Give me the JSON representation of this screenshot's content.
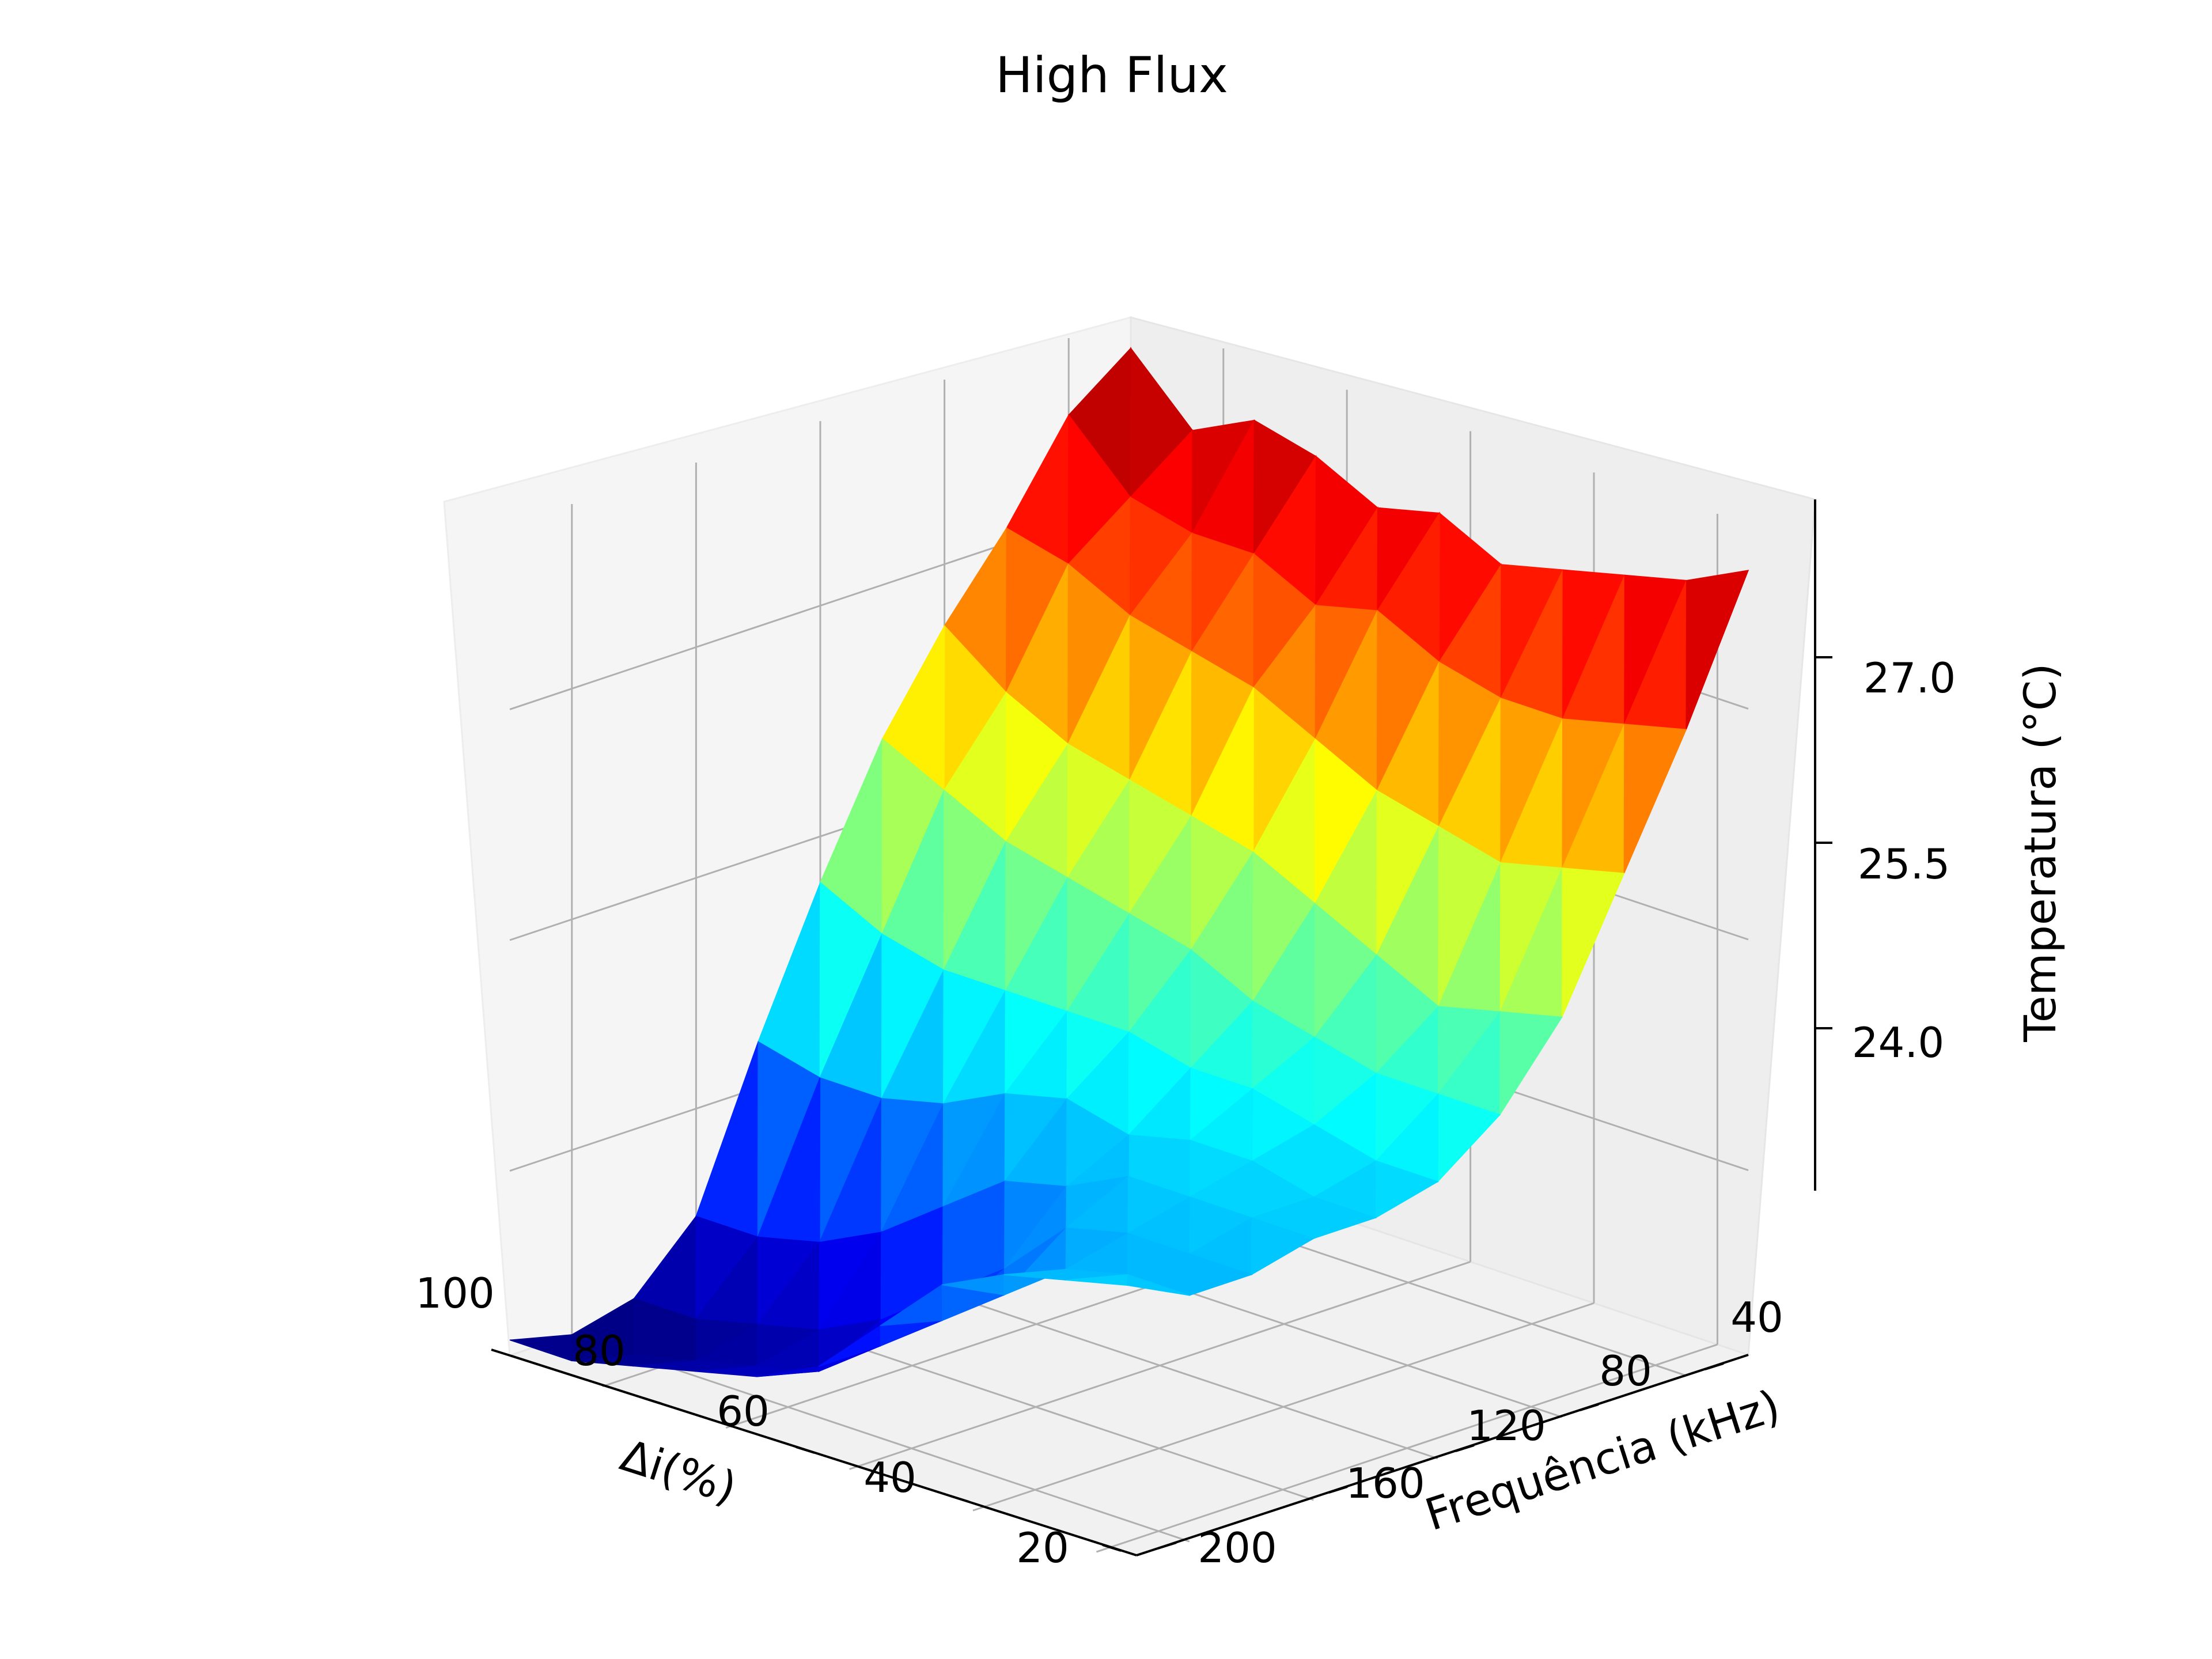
{
  "chart_data": {
    "type": "surface3d",
    "title": "High Flux",
    "xlabel": "Δi(%)",
    "ylabel": "Frequência (kHz)",
    "zlabel": "Temperatura (°C)",
    "colormap": "jet",
    "grid": true,
    "x_ticks": [
      "20",
      "40",
      "60",
      "80",
      "100"
    ],
    "y_ticks": [
      "40",
      "80",
      "120",
      "160",
      "200"
    ],
    "z_ticks": [
      "24.0",
      "25.5",
      "27.0"
    ],
    "xlim": [
      10,
      110
    ],
    "ylim": [
      10,
      210
    ],
    "zlim": [
      22.8,
      28.2
    ],
    "x": [
      10,
      20,
      30,
      40,
      50,
      60,
      70,
      80,
      90,
      100,
      110
    ],
    "y": [
      10,
      30,
      50,
      70,
      90,
      110,
      130,
      150,
      170,
      190,
      210
    ],
    "z": [
      [
        28.0,
        27.7,
        27.1,
        26.6,
        26.0,
        25.2,
        24.3,
        23.3,
        22.9,
        22.8,
        22.9
      ],
      [
        27.6,
        27.3,
        27.0,
        26.3,
        25.8,
        25.0,
        24.2,
        23.3,
        22.9,
        22.8,
        22.9
      ],
      [
        27.8,
        27.2,
        26.8,
        26.1,
        25.6,
        24.9,
        24.2,
        23.4,
        23.0,
        22.9,
        23.0
      ],
      [
        27.7,
        27.2,
        26.7,
        26.0,
        25.5,
        24.9,
        24.3,
        23.6,
        23.1,
        23.0,
        23.1
      ],
      [
        27.5,
        27.0,
        26.6,
        25.9,
        25.4,
        24.9,
        24.5,
        23.9,
        23.3,
        23.1,
        23.2
      ],
      [
        27.6,
        27.1,
        26.4,
        25.8,
        25.3,
        24.9,
        24.6,
        24.2,
        23.6,
        23.4,
        23.4
      ],
      [
        27.4,
        26.9,
        26.2,
        25.6,
        25.1,
        24.8,
        24.5,
        24.3,
        23.9,
        23.7,
        23.8
      ],
      [
        27.5,
        26.8,
        26.1,
        25.4,
        25.0,
        24.8,
        24.6,
        24.5,
        24.3,
        24.0,
        24.2
      ],
      [
        27.6,
        26.8,
        26.0,
        25.2,
        24.9,
        24.7,
        24.6,
        24.5,
        24.4,
        24.3,
        24.4
      ],
      [
        27.7,
        26.9,
        26.1,
        25.3,
        24.9,
        24.6,
        24.5,
        24.5,
        24.4,
        24.4,
        24.5
      ],
      [
        27.9,
        27.0,
        26.2,
        25.4,
        24.9,
        24.6,
        24.5,
        24.5,
        24.4,
        24.4,
        24.6
      ]
    ]
  }
}
